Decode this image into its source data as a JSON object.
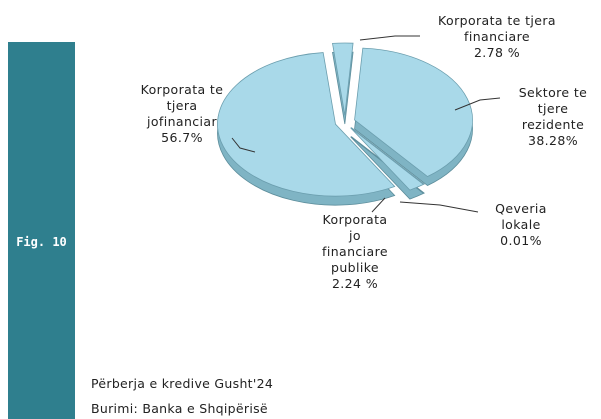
{
  "figure": "Fig. 10",
  "notes": [
    "Përberja e kredive Gusht'24",
    "Burimi: Banka e Shqipërisë"
  ],
  "chart_data": {
    "type": "pie",
    "categories": [
      "Korporata te tjera financiare",
      "Sektore te tjere rezidente",
      "Qeveria lokale",
      "Korporata jo financiare publike",
      "Korporata te tjera jofinanciar"
    ],
    "values": [
      2.78,
      38.28,
      0.01,
      2.24,
      56.7
    ],
    "value_labels": [
      "2.78 %",
      "38.28%",
      "0.01%",
      "2.24 %",
      "56.7%"
    ],
    "color": "#a9d9e9"
  }
}
